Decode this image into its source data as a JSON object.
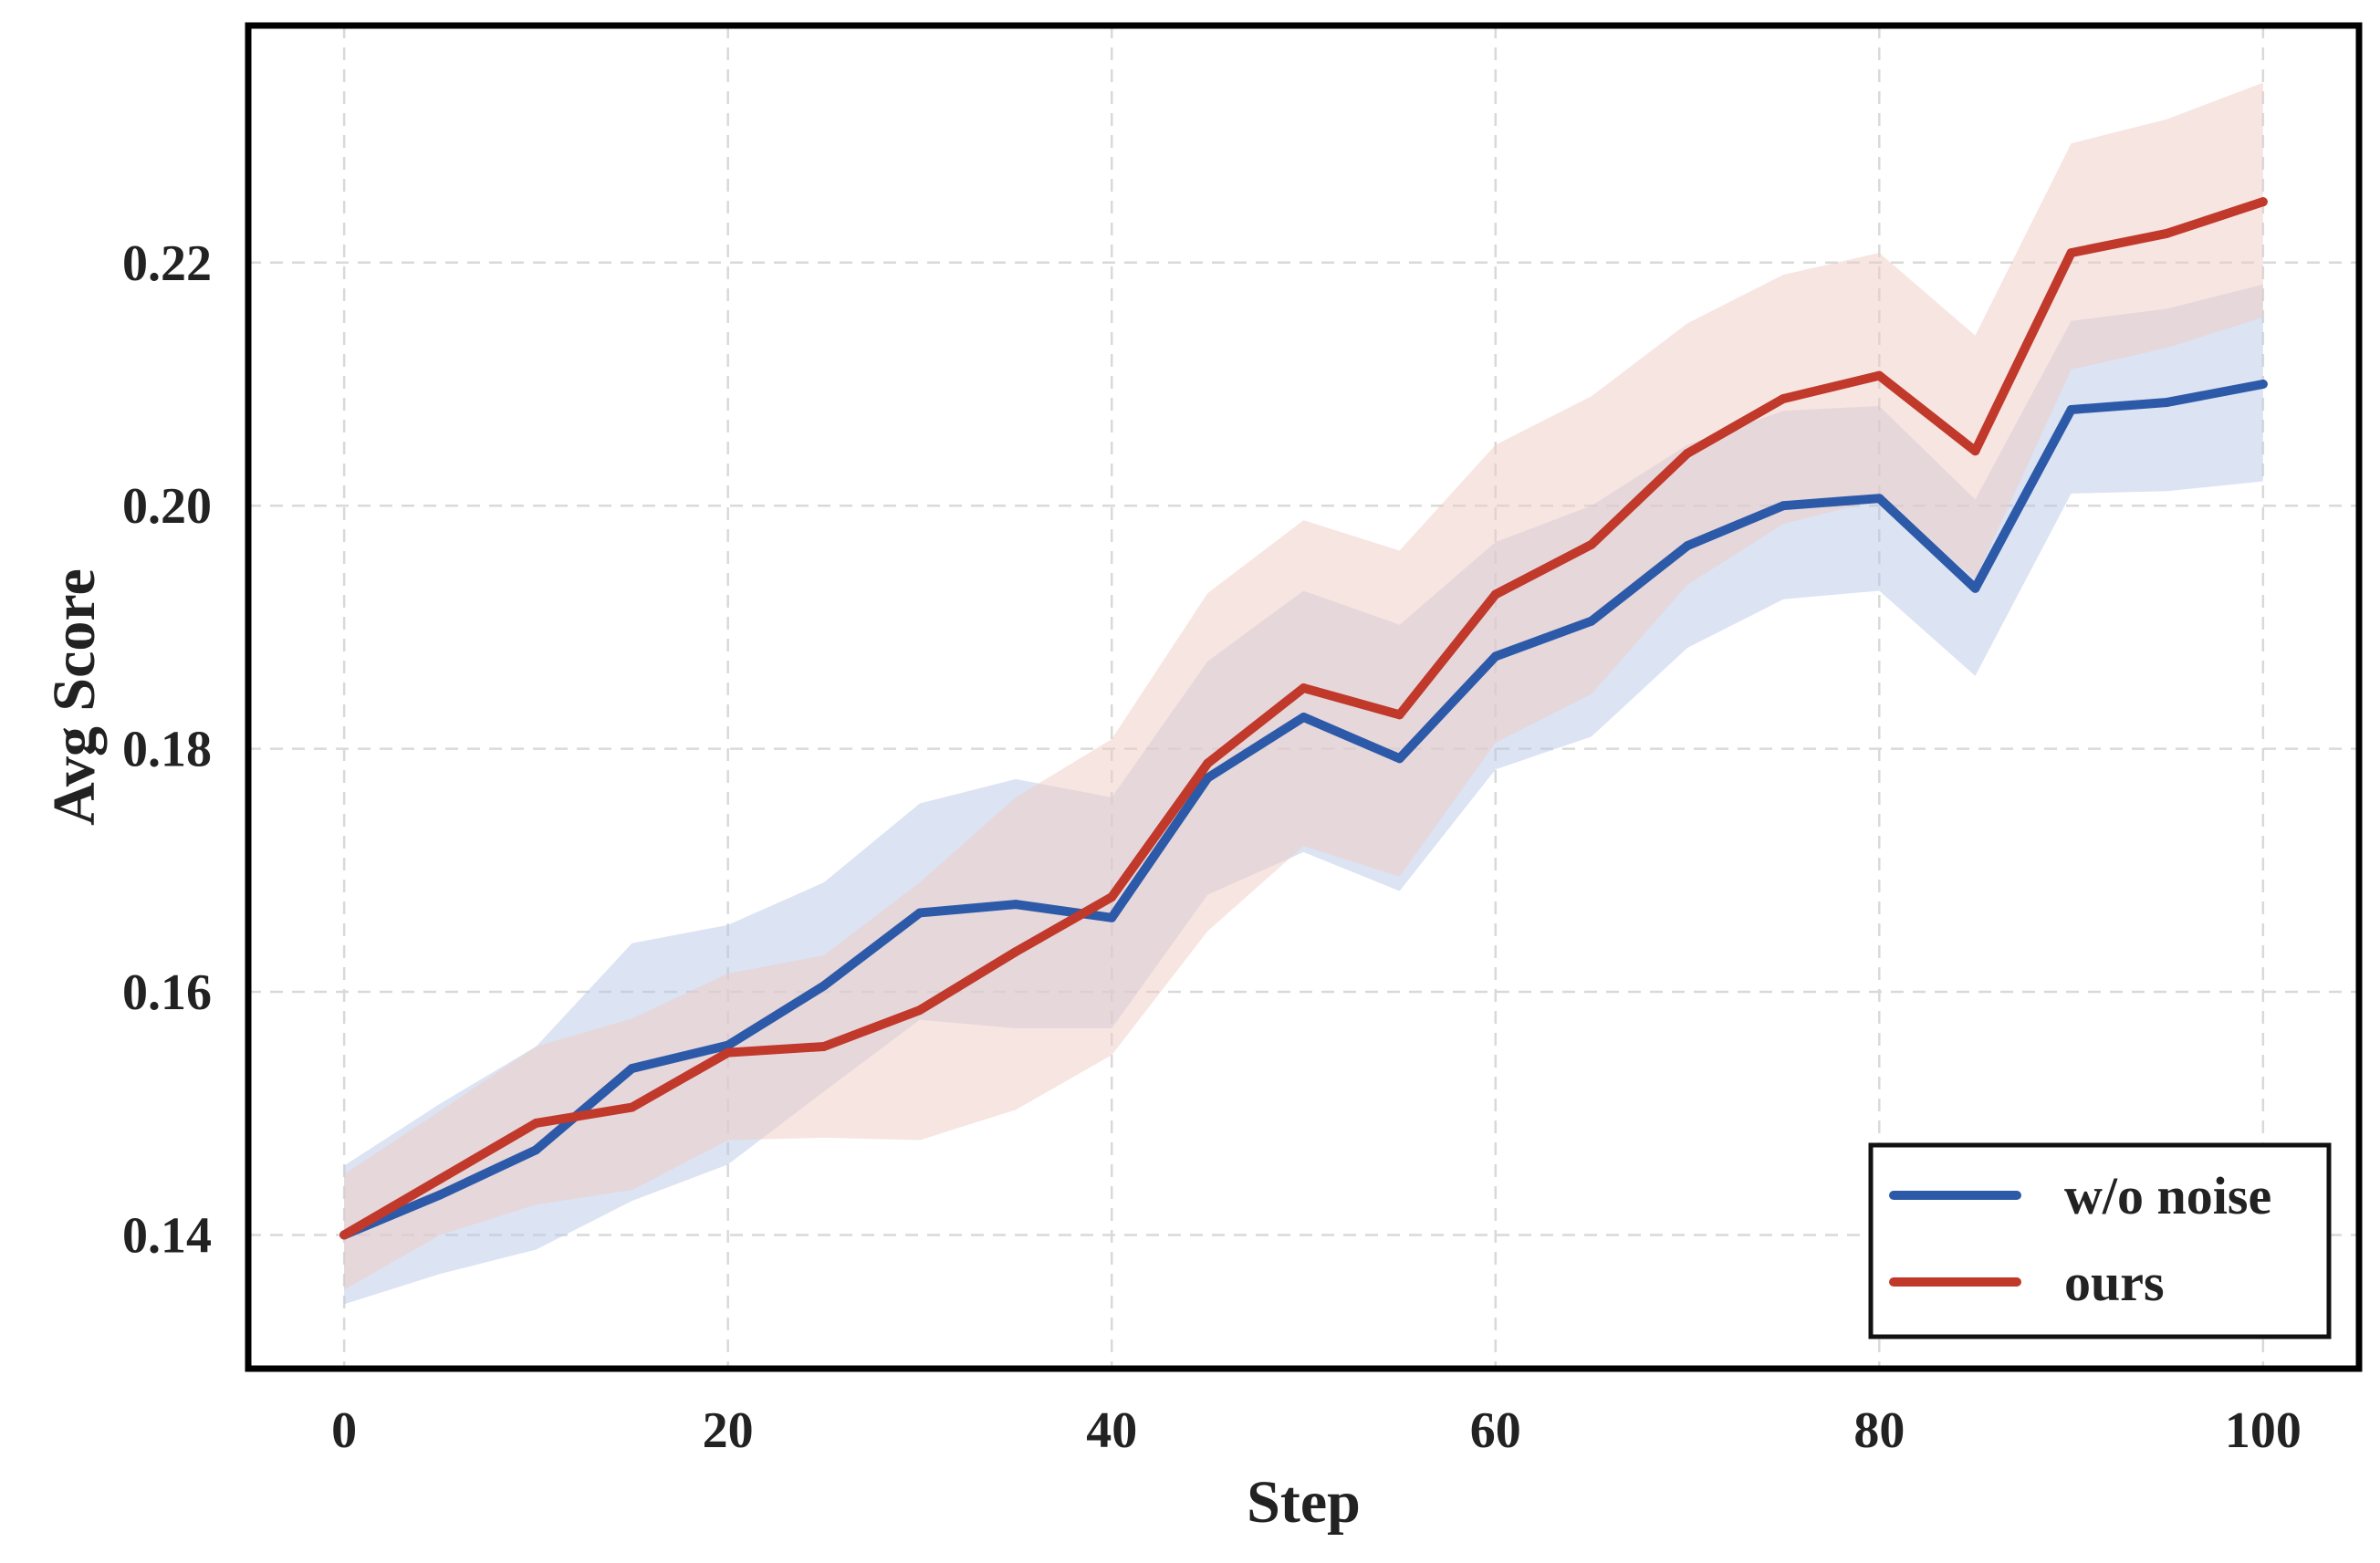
{
  "chart_data": {
    "type": "line",
    "xlabel": "Step",
    "ylabel": "Avg Score",
    "xlim": [
      -5,
      105
    ],
    "ylim": [
      0.129,
      0.2395
    ],
    "x_ticks": [
      0,
      20,
      40,
      60,
      80,
      100
    ],
    "y_ticks": [
      0.14,
      0.16,
      0.18,
      0.2,
      0.22
    ],
    "x_tick_labels": [
      "0",
      "20",
      "40",
      "60",
      "80",
      "100"
    ],
    "y_tick_labels": [
      "0.14",
      "0.16",
      "0.18",
      "0.20",
      "0.22"
    ],
    "grid": true,
    "legend_position": "bottom-right",
    "x": [
      0,
      5,
      10,
      15,
      20,
      25,
      30,
      35,
      40,
      45,
      50,
      55,
      60,
      65,
      70,
      75,
      80,
      85,
      90,
      95,
      100
    ],
    "series": [
      {
        "name": "w/o noise",
        "color": "#2d5aa8",
        "band_color": "#b9c8e6",
        "values": [
          0.14,
          0.1433,
          0.147,
          0.1537,
          0.1556,
          0.1605,
          0.1665,
          0.1672,
          0.1661,
          0.1776,
          0.1826,
          0.1792,
          0.1876,
          0.1905,
          0.1967,
          0.2,
          0.2006,
          0.1932,
          0.2079,
          0.2085,
          0.21
        ],
        "lower": [
          0.1343,
          0.1368,
          0.1388,
          0.1428,
          0.1458,
          0.1518,
          0.1577,
          0.157,
          0.157,
          0.168,
          0.1715,
          0.1683,
          0.1783,
          0.181,
          0.1883,
          0.1923,
          0.193,
          0.186,
          0.201,
          0.2012,
          0.202
        ],
        "upper": [
          0.1457,
          0.1508,
          0.1555,
          0.164,
          0.1655,
          0.169,
          0.1755,
          0.1775,
          0.176,
          0.1872,
          0.193,
          0.1902,
          0.197,
          0.2,
          0.205,
          0.2078,
          0.2082,
          0.2005,
          0.2152,
          0.2162,
          0.2182
        ]
      },
      {
        "name": "ours",
        "color": "#c0392b",
        "band_color": "#f0cbc4",
        "values": [
          0.14,
          0.1446,
          0.1492,
          0.1505,
          0.155,
          0.1555,
          0.1585,
          0.1633,
          0.1678,
          0.1788,
          0.185,
          0.1828,
          0.1927,
          0.1968,
          0.2043,
          0.2088,
          0.2107,
          0.2045,
          0.2208,
          0.2224,
          0.225
        ],
        "lower": [
          0.1355,
          0.14,
          0.1425,
          0.1437,
          0.1478,
          0.148,
          0.1478,
          0.1503,
          0.1548,
          0.165,
          0.172,
          0.1695,
          0.1805,
          0.1845,
          0.1935,
          0.1985,
          0.2005,
          0.194,
          0.2112,
          0.213,
          0.2155
        ],
        "upper": [
          0.145,
          0.1502,
          0.1555,
          0.1578,
          0.1615,
          0.163,
          0.169,
          0.176,
          0.1808,
          0.1928,
          0.1988,
          0.1963,
          0.205,
          0.209,
          0.215,
          0.219,
          0.2208,
          0.214,
          0.2298,
          0.2318,
          0.2348
        ]
      }
    ]
  }
}
